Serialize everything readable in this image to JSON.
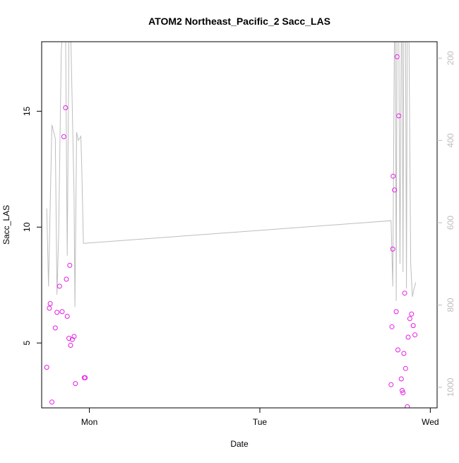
{
  "chart_data": {
    "type": "scatter",
    "title": "ATOM2 Northeast_Pacific_2 Sacc_LAS",
    "xlabel": "Date",
    "ylabel": "Sacc_LAS",
    "x_unit": "days since Mon 00:00",
    "xlim": [
      -0.28,
      2.04
    ],
    "ylim": [
      2.2,
      18.0
    ],
    "x_ticks": [
      {
        "value": 0,
        "label": "Mon"
      },
      {
        "value": 1,
        "label": "Tue"
      },
      {
        "value": 2,
        "label": "Wed"
      }
    ],
    "y_ticks": [
      5,
      10,
      15
    ],
    "right_axis": {
      "reversed": true,
      "ylim": [
        1050,
        160
      ],
      "ticks": [
        200,
        400,
        600,
        800,
        1000
      ],
      "color": "#bdbdbd"
    },
    "grid": false,
    "series": [
      {
        "role": "points",
        "color": "#e61be6",
        "marker": "open-circle",
        "points": [
          {
            "x": -0.25,
            "y": 3.95
          },
          {
            "x": -0.235,
            "y": 6.5
          },
          {
            "x": -0.23,
            "y": 6.7
          },
          {
            "x": -0.22,
            "y": 2.45
          },
          {
            "x": -0.2,
            "y": 5.65
          },
          {
            "x": -0.19,
            "y": 6.32
          },
          {
            "x": -0.175,
            "y": 7.45
          },
          {
            "x": -0.16,
            "y": 6.35
          },
          {
            "x": -0.15,
            "y": 13.9
          },
          {
            "x": -0.14,
            "y": 15.15
          },
          {
            "x": -0.135,
            "y": 7.75
          },
          {
            "x": -0.13,
            "y": 6.15
          },
          {
            "x": -0.12,
            "y": 5.2
          },
          {
            "x": -0.115,
            "y": 8.35
          },
          {
            "x": -0.11,
            "y": 4.9
          },
          {
            "x": -0.1,
            "y": 5.15
          },
          {
            "x": -0.09,
            "y": 5.28
          },
          {
            "x": -0.082,
            "y": 3.25
          },
          {
            "x": -0.03,
            "y": 3.5
          },
          {
            "x": -0.025,
            "y": 3.5
          },
          {
            "x": 1.77,
            "y": 3.2
          },
          {
            "x": 1.775,
            "y": 5.7
          },
          {
            "x": 1.78,
            "y": 9.05
          },
          {
            "x": 1.782,
            "y": 12.2
          },
          {
            "x": 1.79,
            "y": 11.6
          },
          {
            "x": 1.8,
            "y": 6.35
          },
          {
            "x": 1.805,
            "y": 17.35
          },
          {
            "x": 1.81,
            "y": 4.7
          },
          {
            "x": 1.815,
            "y": 14.8
          },
          {
            "x": 1.83,
            "y": 3.45
          },
          {
            "x": 1.835,
            "y": 2.95
          },
          {
            "x": 1.84,
            "y": 2.85
          },
          {
            "x": 1.845,
            "y": 4.55
          },
          {
            "x": 1.85,
            "y": 7.15
          },
          {
            "x": 1.855,
            "y": 3.9
          },
          {
            "x": 1.865,
            "y": 2.25
          },
          {
            "x": 1.87,
            "y": 5.25
          },
          {
            "x": 1.88,
            "y": 6.05
          },
          {
            "x": 1.89,
            "y": 6.25
          },
          {
            "x": 1.9,
            "y": 5.75
          },
          {
            "x": 1.91,
            "y": 5.35
          }
        ]
      },
      {
        "role": "line",
        "color": "#bdbdbd",
        "axis": "right",
        "x": [
          -0.25,
          -0.24,
          -0.22,
          -0.2,
          -0.19,
          -0.18,
          -0.165,
          -0.155,
          -0.14,
          -0.13,
          -0.12,
          -0.11,
          -0.09,
          -0.085,
          -0.075,
          -0.065,
          -0.05,
          -0.045,
          -0.035,
          -0.03,
          1.77,
          1.78,
          1.79,
          1.795,
          1.8,
          1.805,
          1.81,
          1.815,
          1.822,
          1.83,
          1.835,
          1.84,
          1.845,
          1.855,
          1.86,
          1.865,
          1.875,
          1.885,
          1.895,
          1.905,
          1.915
        ],
        "y": [
          565,
          755,
          362,
          395,
          775,
          625,
          180,
          125,
          120,
          680,
          160,
          120,
          535,
          805,
          380,
          400,
          390,
          460,
          650,
          650,
          595,
          755,
          105,
          150,
          790,
          100,
          160,
          120,
          700,
          140,
          100,
          720,
          120,
          140,
          760,
          100,
          160,
          700,
          780,
          760,
          745
        ]
      }
    ]
  }
}
